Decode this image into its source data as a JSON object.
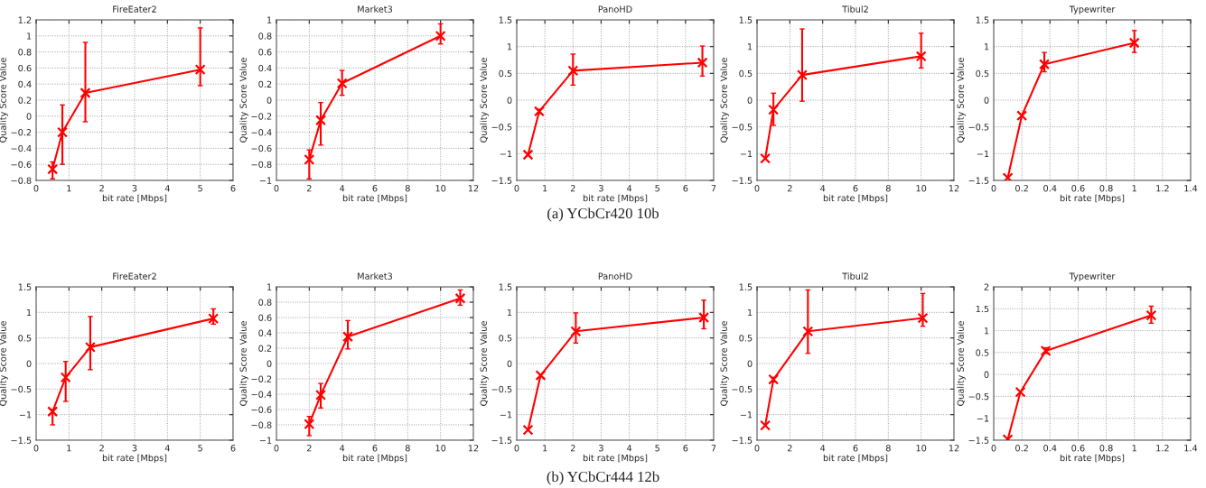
{
  "chart_data": [
    {
      "type": "line",
      "title": "FireEater2",
      "xlabel": "bit rate [Mbps]",
      "ylabel": "Quality Score Value",
      "x": [
        0.5,
        0.8,
        1.5,
        5
      ],
      "series": [
        {
          "color": "#ff0000",
          "values": [
            -0.66,
            -0.2,
            0.29,
            0.58
          ],
          "errors": [
            [
              -0.78,
              -0.57
            ],
            [
              -0.6,
              0.14
            ],
            [
              -0.07,
              0.92
            ],
            [
              0.38,
              1.1
            ]
          ]
        }
      ],
      "xlim": [
        0,
        6
      ],
      "xticks": [
        0,
        1,
        2,
        3,
        4,
        5,
        6
      ],
      "ylim": [
        -0.8,
        1.2
      ],
      "yticks": [
        -0.8,
        -0.6,
        -0.4,
        -0.2,
        0,
        0.2,
        0.4,
        0.6,
        0.8,
        1,
        1.2
      ],
      "grid": true,
      "marker": "cross",
      "line_style": "solid",
      "annotations": [
        "(a) YCbCr420 10b"
      ]
    },
    {
      "type": "line",
      "title": "Market3",
      "xlabel": "bit rate [Mbps]",
      "ylabel": "Quality Score Value",
      "x": [
        2,
        2.7,
        4,
        10
      ],
      "series": [
        {
          "color": "#ff0000",
          "values": [
            -0.74,
            -0.25,
            0.21,
            0.8
          ],
          "errors": [
            [
              -0.98,
              -0.62
            ],
            [
              -0.56,
              -0.03
            ],
            [
              0.06,
              0.37
            ],
            [
              0.7,
              0.95
            ]
          ]
        }
      ],
      "xlim": [
        0,
        12
      ],
      "xticks": [
        0,
        2,
        4,
        6,
        8,
        10,
        12
      ],
      "ylim": [
        -1,
        1
      ],
      "yticks": [
        -1,
        -0.8,
        -0.6,
        -0.4,
        -0.2,
        0,
        0.2,
        0.4,
        0.6,
        0.8,
        1
      ],
      "grid": true,
      "marker": "cross",
      "line_style": "solid"
    },
    {
      "type": "line",
      "title": "PanoHD",
      "xlabel": "bit rate [Mbps]",
      "ylabel": "Quality Score Value",
      "x": [
        0.4,
        0.8,
        2,
        6.6
      ],
      "series": [
        {
          "color": "#ff0000",
          "values": [
            -1.02,
            -0.21,
            0.55,
            0.7
          ],
          "errors": [
            null,
            [
              -0.25,
              -0.17
            ],
            [
              0.28,
              0.86
            ],
            [
              0.45,
              1.01
            ]
          ]
        }
      ],
      "xlim": [
        0,
        7
      ],
      "xticks": [
        0,
        1,
        2,
        3,
        4,
        5,
        6,
        7
      ],
      "ylim": [
        -1.5,
        1.5
      ],
      "yticks": [
        -1.5,
        -1,
        -0.5,
        0,
        0.5,
        1,
        1.5
      ],
      "grid": true,
      "marker": "cross",
      "line_style": "solid"
    },
    {
      "type": "line",
      "title": "Tibul2",
      "xlabel": "bit rate [Mbps]",
      "ylabel": "Quality Score Value",
      "x": [
        0.5,
        1,
        2.75,
        10
      ],
      "series": [
        {
          "color": "#ff0000",
          "values": [
            -1.09,
            -0.18,
            0.47,
            0.82
          ],
          "errors": [
            null,
            [
              -0.47,
              0.13
            ],
            [
              -0.02,
              1.33
            ],
            [
              0.6,
              1.25
            ]
          ]
        }
      ],
      "xlim": [
        0,
        12
      ],
      "xticks": [
        0,
        2,
        4,
        6,
        8,
        10,
        12
      ],
      "ylim": [
        -1.5,
        1.5
      ],
      "yticks": [
        -1.5,
        -1,
        -0.5,
        0,
        0.5,
        1,
        1.5
      ],
      "grid": true,
      "marker": "cross",
      "line_style": "solid"
    },
    {
      "type": "line",
      "title": "Typewriter",
      "xlabel": "bit rate [Mbps]",
      "ylabel": "Quality Score Value",
      "x": [
        0.1,
        0.2,
        0.36,
        1
      ],
      "series": [
        {
          "color": "#ff0000",
          "values": [
            -1.45,
            -0.29,
            0.67,
            1.07
          ],
          "errors": [
            null,
            null,
            [
              0.53,
              0.89
            ],
            [
              0.89,
              1.3
            ]
          ]
        }
      ],
      "xlim": [
        0,
        1.4
      ],
      "xticks": [
        0,
        0.2,
        0.4,
        0.6,
        0.8,
        1,
        1.2,
        1.4
      ],
      "ylim": [
        -1.5,
        1.5
      ],
      "yticks": [
        -1.5,
        -1,
        -0.5,
        0,
        0.5,
        1,
        1.5
      ],
      "grid": true,
      "marker": "cross",
      "line_style": "solid"
    },
    {
      "type": "line",
      "title": "FireEater2",
      "xlabel": "bit rate [Mbps]",
      "ylabel": "Quality Score Value",
      "x": [
        0.5,
        0.9,
        1.65,
        5.4
      ],
      "series": [
        {
          "color": "#ff0000",
          "values": [
            -0.94,
            -0.27,
            0.32,
            0.88
          ],
          "errors": [
            [
              -1.2,
              -0.9
            ],
            [
              -0.74,
              0.04
            ],
            [
              -0.12,
              0.92
            ],
            [
              0.77,
              1.07
            ]
          ]
        }
      ],
      "xlim": [
        0,
        6
      ],
      "xticks": [
        0,
        1,
        2,
        3,
        4,
        5,
        6
      ],
      "ylim": [
        -1.5,
        1.5
      ],
      "yticks": [
        -1.5,
        -1,
        -0.5,
        0,
        0.5,
        1,
        1.5
      ],
      "grid": true,
      "marker": "cross",
      "line_style": "solid",
      "annotations": [
        "(b) YCbCr444 12b"
      ]
    },
    {
      "type": "line",
      "title": "Market3",
      "xlabel": "bit rate [Mbps]",
      "ylabel": "Quality Score Value",
      "x": [
        2,
        2.7,
        4.35,
        11.2
      ],
      "series": [
        {
          "color": "#ff0000",
          "values": [
            -0.79,
            -0.41,
            0.35,
            0.85
          ],
          "errors": [
            [
              -0.94,
              -0.69
            ],
            [
              -0.58,
              -0.26
            ],
            [
              0.19,
              0.56
            ],
            [
              0.76,
              0.96
            ]
          ]
        }
      ],
      "xlim": [
        0,
        12
      ],
      "xticks": [
        0,
        2,
        4,
        6,
        8,
        10,
        12
      ],
      "ylim": [
        -1,
        1
      ],
      "yticks": [
        -1,
        -0.8,
        -0.6,
        -0.4,
        -0.2,
        0,
        0.2,
        0.4,
        0.6,
        0.8,
        1
      ],
      "grid": true,
      "marker": "cross",
      "line_style": "solid"
    },
    {
      "type": "line",
      "title": "PanoHD",
      "xlabel": "bit rate [Mbps]",
      "ylabel": "Quality Score Value",
      "x": [
        0.4,
        0.85,
        2.1,
        6.65
      ],
      "series": [
        {
          "color": "#ff0000",
          "values": [
            -1.3,
            -0.23,
            0.63,
            0.9
          ],
          "errors": [
            null,
            null,
            [
              0.4,
              0.99
            ],
            [
              0.68,
              1.24
            ]
          ]
        }
      ],
      "xlim": [
        0,
        7
      ],
      "xticks": [
        0,
        1,
        2,
        3,
        4,
        5,
        6,
        7
      ],
      "ylim": [
        -1.5,
        1.5
      ],
      "yticks": [
        -1.5,
        -1,
        -0.5,
        0,
        0.5,
        1,
        1.5
      ],
      "grid": true,
      "marker": "cross",
      "line_style": "solid"
    },
    {
      "type": "line",
      "title": "Tibul2",
      "xlabel": "bit rate [Mbps]",
      "ylabel": "Quality Score Value",
      "x": [
        0.5,
        1,
        3.1,
        10.1
      ],
      "series": [
        {
          "color": "#ff0000",
          "values": [
            -1.21,
            -0.31,
            0.63,
            0.89
          ],
          "errors": [
            null,
            [
              -0.36,
              -0.27
            ],
            [
              0.2,
              1.44
            ],
            [
              0.73,
              1.37
            ]
          ]
        }
      ],
      "xlim": [
        0,
        12
      ],
      "xticks": [
        0,
        2,
        4,
        6,
        8,
        10,
        12
      ],
      "ylim": [
        -1.5,
        1.5
      ],
      "yticks": [
        -1.5,
        -1,
        -0.5,
        0,
        0.5,
        1,
        1.5
      ],
      "grid": true,
      "marker": "cross",
      "line_style": "solid"
    },
    {
      "type": "line",
      "title": "Typewriter",
      "xlabel": "bit rate [Mbps]",
      "ylabel": "Quality Score Value",
      "x": [
        0.1,
        0.19,
        0.37,
        1.12
      ],
      "series": [
        {
          "color": "#ff0000",
          "values": [
            -1.48,
            -0.4,
            0.54,
            1.35
          ],
          "errors": [
            null,
            null,
            [
              0.48,
              0.61
            ],
            [
              1.17,
              1.56
            ]
          ]
        }
      ],
      "xlim": [
        0,
        1.4
      ],
      "xticks": [
        0,
        0.2,
        0.4,
        0.6,
        0.8,
        1,
        1.2,
        1.4
      ],
      "ylim": [
        -1.5,
        2
      ],
      "yticks": [
        -1.5,
        -1,
        -0.5,
        0,
        0.5,
        1,
        1.5,
        2
      ],
      "grid": true,
      "marker": "cross",
      "line_style": "solid"
    }
  ]
}
